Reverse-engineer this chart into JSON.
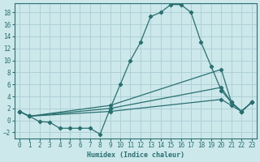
{
  "title": "",
  "xlabel": "Humidex (Indice chaleur)",
  "ylabel": "",
  "xlim": [
    -0.5,
    23.5
  ],
  "ylim": [
    -3,
    19.5
  ],
  "yticks": [
    -2,
    0,
    2,
    4,
    6,
    8,
    10,
    12,
    14,
    16,
    18
  ],
  "xticks": [
    0,
    1,
    2,
    3,
    4,
    5,
    6,
    7,
    8,
    9,
    10,
    11,
    12,
    13,
    14,
    15,
    16,
    17,
    18,
    19,
    20,
    21,
    22,
    23
  ],
  "bg_color": "#cce8eb",
  "line_color": "#2a7070",
  "grid_color": "#b0d0d8",
  "series": [
    {
      "x": [
        0,
        1,
        2,
        3,
        4,
        5,
        6,
        7,
        8,
        9,
        10,
        11,
        12,
        13,
        14,
        15,
        16,
        17,
        18,
        19,
        20,
        21,
        22,
        23
      ],
      "y": [
        1.5,
        0.7,
        -0.2,
        -0.3,
        -1.3,
        -1.3,
        -1.3,
        -1.3,
        -2.3,
        2.0,
        6.0,
        10.0,
        13.0,
        17.3,
        18.0,
        19.3,
        19.3,
        18.0,
        13.0,
        9.0,
        5.0,
        3.0,
        1.5,
        3.0
      ]
    },
    {
      "x": [
        0,
        1,
        9,
        20,
        21,
        22,
        23
      ],
      "y": [
        1.5,
        0.7,
        2.5,
        8.5,
        3.0,
        1.5,
        3.0
      ]
    },
    {
      "x": [
        0,
        1,
        9,
        20,
        21,
        22,
        23
      ],
      "y": [
        1.5,
        0.7,
        2.0,
        5.5,
        3.0,
        1.5,
        3.0
      ]
    },
    {
      "x": [
        0,
        1,
        9,
        20,
        21,
        22,
        23
      ],
      "y": [
        1.5,
        0.7,
        1.5,
        3.5,
        2.5,
        1.5,
        3.0
      ]
    }
  ]
}
